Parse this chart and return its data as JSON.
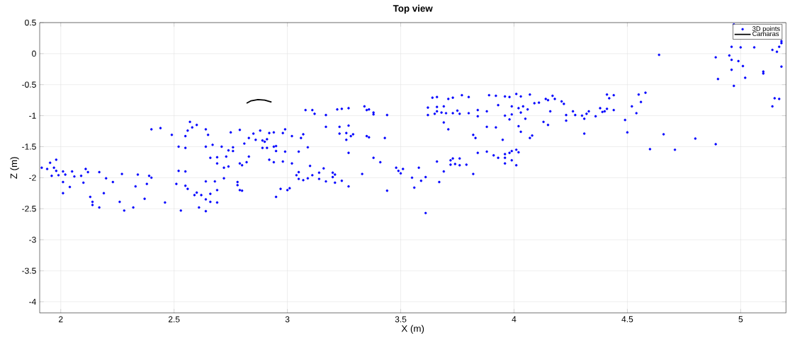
{
  "chart_data": {
    "type": "scatter",
    "title": "Top view",
    "xlabel": "X (m)",
    "ylabel": "Z (m)",
    "xlim": [
      1.907,
      5.2
    ],
    "ylim": [
      -4.18,
      0.5
    ],
    "xticks": [
      2,
      2.5,
      3,
      3.5,
      4,
      4.5,
      5
    ],
    "yticks": [
      0.5,
      0,
      -0.5,
      -1,
      -1.5,
      -2,
      -2.5,
      -3,
      -3.5,
      -4
    ],
    "grid": true,
    "legend": "top right",
    "series": [
      {
        "name": "3D points",
        "type": "scatter",
        "color": "#0000ff",
        "marker": "circle",
        "x": [
          1.916,
          1.94,
          1.953,
          1.97,
          1.98,
          1.96,
          1.98,
          1.99,
          2.01,
          2.01,
          2.01,
          2.02,
          2.05,
          2.04,
          2.06,
          2.09,
          2.1,
          2.11,
          2.12,
          2.17,
          2.13,
          2.14,
          2.14,
          2.17,
          2.19,
          2.2,
          2.23,
          2.27,
          2.26,
          2.28,
          2.32,
          2.34,
          2.33,
          2.37,
          2.38,
          2.39,
          2.4,
          2.4,
          2.44,
          2.46,
          2.49,
          2.51,
          2.53,
          2.52,
          2.52,
          2.55,
          2.55,
          2.55,
          2.56,
          2.57,
          2.58,
          2.6,
          2.55,
          2.56,
          2.59,
          2.6,
          2.62,
          2.61,
          2.64,
          2.64,
          2.66,
          2.69,
          2.66,
          2.69,
          2.64,
          2.68,
          2.64,
          2.64,
          2.65,
          2.67,
          2.66,
          2.69,
          2.69,
          2.72,
          2.71,
          2.73,
          2.72,
          2.74,
          2.74,
          2.76,
          2.75,
          2.79,
          2.79,
          2.79,
          2.8,
          2.78,
          2.83,
          2.85,
          2.86,
          2.88,
          2.89,
          2.9,
          2.91,
          2.92,
          2.94,
          2.98,
          2.99,
          2.81,
          2.83,
          2.82,
          2.8,
          2.89,
          2.91,
          2.94,
          2.95,
          2.95,
          2.99,
          2.92,
          2.94,
          2.98,
          2.97,
          2.95,
          3.0,
          3.01,
          2.78,
          2.76,
          3.08,
          3.11,
          3.12,
          3.17,
          3.17,
          3.22,
          3.24,
          3.27,
          3.27,
          3.23,
          3.23,
          3.26,
          3.28,
          3.29,
          3.26,
          3.34,
          3.35,
          3.36,
          3.38,
          3.38,
          3.44,
          3.35,
          3.36,
          3.43,
          3.27,
          3.38,
          3.41,
          3.33,
          3.27,
          3.44,
          3.09,
          3.1,
          3.05,
          3.02,
          3.04,
          3.05,
          3.05,
          3.07,
          3.09,
          3.11,
          3.14,
          3.14,
          3.16,
          3.17,
          3.2,
          3.21,
          3.21,
          3.24,
          3.2,
          3.02,
          3.06,
          3.07,
          3.48,
          3.49,
          3.5,
          3.51,
          3.55,
          3.56,
          3.58,
          3.59,
          3.61,
          3.61,
          3.67,
          3.66,
          3.69,
          3.72,
          3.73,
          3.72,
          3.74,
          3.76,
          3.76,
          3.79,
          3.82,
          3.84,
          3.88,
          3.62,
          3.62,
          3.64,
          3.66,
          3.66,
          3.66,
          3.68,
          3.69,
          3.65,
          3.69,
          3.71,
          3.7,
          3.71,
          3.73,
          3.73,
          3.75,
          3.76,
          3.77,
          3.8,
          3.8,
          3.84,
          3.84,
          3.88,
          3.88,
          3.82,
          3.83,
          3.89,
          3.92,
          3.93,
          3.96,
          3.98,
          3.99,
          3.99,
          3.96,
          3.98,
          3.92,
          3.95,
          4.01,
          4.03,
          4.07,
          4.02,
          4.04,
          4.03,
          4.06,
          4.05,
          4.02,
          4.03,
          4.07,
          4.08,
          4.09,
          4.11,
          4.14,
          4.15,
          4.17,
          4.18,
          4.16,
          4.13,
          4.15,
          4.21,
          4.22,
          4.23,
          4.23,
          4.26,
          4.27,
          4.3,
          4.31,
          4.32,
          4.33,
          4.31,
          4.36,
          4.38,
          4.39,
          4.4,
          4.41,
          4.44,
          4.41,
          4.42,
          4.44,
          4.49,
          3.91,
          3.93,
          3.96,
          3.98,
          3.99,
          4.01,
          4.02,
          3.96,
          3.99,
          3.96,
          4.01,
          4.5,
          4.52,
          4.54,
          4.55,
          4.56,
          4.58,
          4.6,
          4.64,
          4.66,
          4.71,
          4.8,
          4.89,
          4.89,
          4.9,
          4.95,
          4.96,
          4.96,
          4.97,
          4.97,
          4.96,
          4.99,
          5.0,
          5.01,
          5.02,
          5.06,
          5.1,
          5.1,
          5.14,
          5.16,
          5.17,
          5.18,
          5.18,
          5.18,
          5.14,
          5.15,
          5.17
        ],
        "values": [
          -1.84,
          -1.86,
          -1.76,
          -1.84,
          -1.71,
          -1.97,
          -1.89,
          -1.96,
          -1.9,
          -2.07,
          -2.25,
          -1.95,
          -1.9,
          -2.15,
          -1.98,
          -1.97,
          -2.08,
          -1.86,
          -1.91,
          -1.91,
          -2.31,
          -2.39,
          -2.44,
          -2.48,
          -2.25,
          -2.01,
          -2.07,
          -1.94,
          -2.39,
          -2.53,
          -2.48,
          -1.95,
          -2.14,
          -2.34,
          -2.1,
          -1.97,
          -2.0,
          -1.22,
          -1.2,
          -2.4,
          -1.31,
          -2.1,
          -2.53,
          -1.5,
          -1.89,
          -1.9,
          -1.52,
          -1.33,
          -1.24,
          -1.1,
          -1.19,
          -1.15,
          -2.13,
          -2.18,
          -2.28,
          -2.24,
          -2.28,
          -2.48,
          -2.54,
          -2.35,
          -2.39,
          -2.4,
          -2.26,
          -2.2,
          -2.06,
          -2.06,
          -1.5,
          -1.22,
          -1.31,
          -1.47,
          -1.68,
          -1.67,
          -1.77,
          -1.84,
          -1.5,
          -1.66,
          -2.01,
          -1.82,
          -1.56,
          -1.57,
          -1.27,
          -1.23,
          -1.77,
          -2.2,
          -2.21,
          -2.07,
          -1.36,
          -1.29,
          -1.39,
          -1.24,
          -1.4,
          -1.42,
          -1.38,
          -1.28,
          -1.27,
          -1.28,
          -1.22,
          -1.45,
          -1.66,
          -1.75,
          -1.8,
          -1.52,
          -1.52,
          -1.5,
          -1.49,
          -1.57,
          -1.58,
          -1.71,
          -1.75,
          -1.74,
          -2.18,
          -2.31,
          -2.2,
          -2.17,
          -2.12,
          -1.51,
          -0.91,
          -0.91,
          -0.97,
          -0.99,
          -1.18,
          -0.9,
          -0.89,
          -0.88,
          -1.16,
          -1.18,
          -1.29,
          -1.28,
          -1.33,
          -1.3,
          -1.39,
          -0.85,
          -0.91,
          -0.9,
          -0.95,
          -0.98,
          -0.99,
          -1.33,
          -1.35,
          -1.36,
          -1.6,
          -1.68,
          -1.75,
          -1.94,
          -2.14,
          -2.21,
          -1.51,
          -1.81,
          -1.58,
          -1.77,
          -1.96,
          -1.91,
          -2.02,
          -2.04,
          -2.01,
          -1.96,
          -2.02,
          -1.92,
          -1.85,
          -2.06,
          -1.92,
          -1.95,
          -2.08,
          -2.05,
          -1.99,
          -1.33,
          -1.36,
          -1.3,
          -1.84,
          -1.89,
          -1.93,
          -1.86,
          -2.0,
          -2.16,
          -1.84,
          -2.05,
          -1.99,
          -2.57,
          -2.07,
          -1.74,
          -1.9,
          -1.72,
          -1.69,
          -1.79,
          -1.78,
          -1.69,
          -1.8,
          -1.79,
          -1.94,
          -1.6,
          -1.58,
          -0.87,
          -0.99,
          -0.71,
          -0.7,
          -0.86,
          -0.93,
          -0.95,
          -0.85,
          -0.97,
          -1.11,
          -1.22,
          -0.96,
          -0.73,
          -0.71,
          -0.96,
          -0.92,
          -0.97,
          -0.67,
          -0.7,
          -0.96,
          -0.91,
          -1.01,
          -0.93,
          -1.18,
          -1.31,
          -1.36,
          -0.67,
          -0.68,
          -0.83,
          -0.69,
          -0.7,
          -0.85,
          -0.98,
          -1.0,
          -1.06,
          -1.19,
          -1.39,
          -0.65,
          -0.69,
          -0.66,
          -0.88,
          -0.85,
          -0.95,
          -0.9,
          -1.05,
          -1.17,
          -1.26,
          -1.36,
          -1.32,
          -0.8,
          -0.79,
          -0.73,
          -0.75,
          -0.68,
          -0.73,
          -0.93,
          -1.1,
          -1.15,
          -0.77,
          -0.81,
          -0.99,
          -1.08,
          -0.93,
          -0.99,
          -1.0,
          -1.05,
          -0.97,
          -0.93,
          -1.29,
          -1.01,
          -0.88,
          -0.94,
          -0.93,
          -0.89,
          -0.91,
          -0.66,
          -0.72,
          -0.67,
          -1.07,
          -1.64,
          -1.68,
          -1.62,
          -1.6,
          -1.57,
          -1.55,
          -1.59,
          -1.68,
          -1.72,
          -1.77,
          -1.8,
          -1.27,
          -0.85,
          -0.96,
          -0.66,
          -0.78,
          -0.63,
          -1.54,
          -0.02,
          -1.3,
          -1.55,
          -1.37,
          -1.46,
          -0.06,
          -0.41,
          -0.03,
          -0.1,
          -0.26,
          -0.52,
          0.47,
          0.11,
          -0.12,
          0.1,
          -0.2,
          -0.39,
          0.1,
          -0.29,
          -0.32,
          0.06,
          0.03,
          0.11,
          0.17,
          0.2,
          -0.21,
          -0.85,
          -0.72,
          -0.73
        ]
      },
      {
        "name": "Camaras",
        "type": "line",
        "color": "#000000",
        "marker": "none",
        "x": [
          2.82,
          2.84,
          2.87,
          2.9,
          2.93
        ],
        "values": [
          -0.8,
          -0.76,
          -0.74,
          -0.75,
          -0.78
        ]
      }
    ]
  }
}
